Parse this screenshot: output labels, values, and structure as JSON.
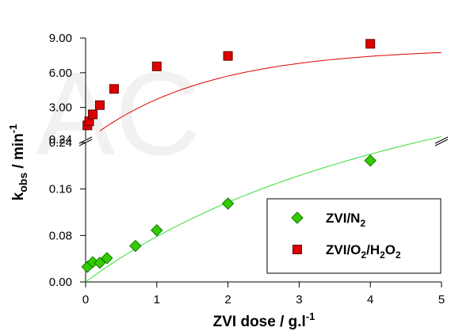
{
  "watermark": "AC",
  "chart_data": {
    "type": "scatter",
    "title": "",
    "xlabel": {
      "main": "ZVI dose / g.l",
      "sup": "-1"
    },
    "ylabel": {
      "main": "k",
      "sub": "obs",
      "rest": " / min",
      "sup": "-1"
    },
    "xlim": [
      0,
      5
    ],
    "x_ticks": [
      0,
      1,
      2,
      3,
      4,
      5
    ],
    "x_tick_labels": [
      "0",
      "1",
      "2",
      "3",
      "4",
      "5"
    ],
    "axis_break": true,
    "lower_panel": {
      "ylim": [
        0,
        0.24
      ],
      "y_ticks": [
        0,
        0.08,
        0.16,
        0.24
      ],
      "y_tick_labels": [
        "0.00",
        "0.08",
        "0.16",
        "0.24"
      ]
    },
    "upper_panel": {
      "ylim": [
        0.24,
        9
      ],
      "y_ticks": [
        0.24,
        3,
        6,
        9
      ],
      "y_tick_labels": [
        "0.24",
        "3.00",
        "6.00",
        "9.00"
      ]
    },
    "legend": {
      "position": "bottom-right",
      "entries": [
        {
          "base": "ZVI/N",
          "sub1": "2",
          "mid": "",
          "sub2": "",
          "end": "",
          "marker": "diamond",
          "color": "#33cc00"
        },
        {
          "base": "ZVI/O",
          "sub1": "2",
          "mid": "/H",
          "sub2": "2",
          "end": "O",
          "sub3": "2",
          "marker": "square",
          "color": "#dd0000"
        }
      ]
    },
    "series": [
      {
        "name": "ZVI/N2",
        "panel": "lower",
        "marker": "diamond",
        "color": "#33cc00",
        "edge_color": "#117700",
        "fit_color": "#33dd33",
        "x": [
          0.025,
          0.1,
          0.2,
          0.3,
          0.7,
          1.0,
          2.0,
          4.0
        ],
        "y": [
          0.026,
          0.034,
          0.033,
          0.041,
          0.062,
          0.089,
          0.135,
          0.209
        ],
        "fit": {
          "model": "saturation",
          "a": 0.557,
          "b": 6.13,
          "x_range": [
            0,
            5
          ]
        }
      },
      {
        "name": "ZVI/O2/H2O2",
        "panel": "upper",
        "marker": "square",
        "color": "#dd0000",
        "edge_color": "#660000",
        "fit_color": "#dd0000",
        "x": [
          0.025,
          0.05,
          0.1,
          0.2,
          0.4,
          1.0,
          2.0,
          4.0
        ],
        "y": [
          1.45,
          1.8,
          2.4,
          3.2,
          4.6,
          6.55,
          7.45,
          8.5
        ],
        "fit": {
          "model": "exp_saturation",
          "y0": 0.05,
          "a": 8.1,
          "k": 0.6,
          "x_range": [
            0.2,
            5
          ]
        }
      }
    ]
  }
}
